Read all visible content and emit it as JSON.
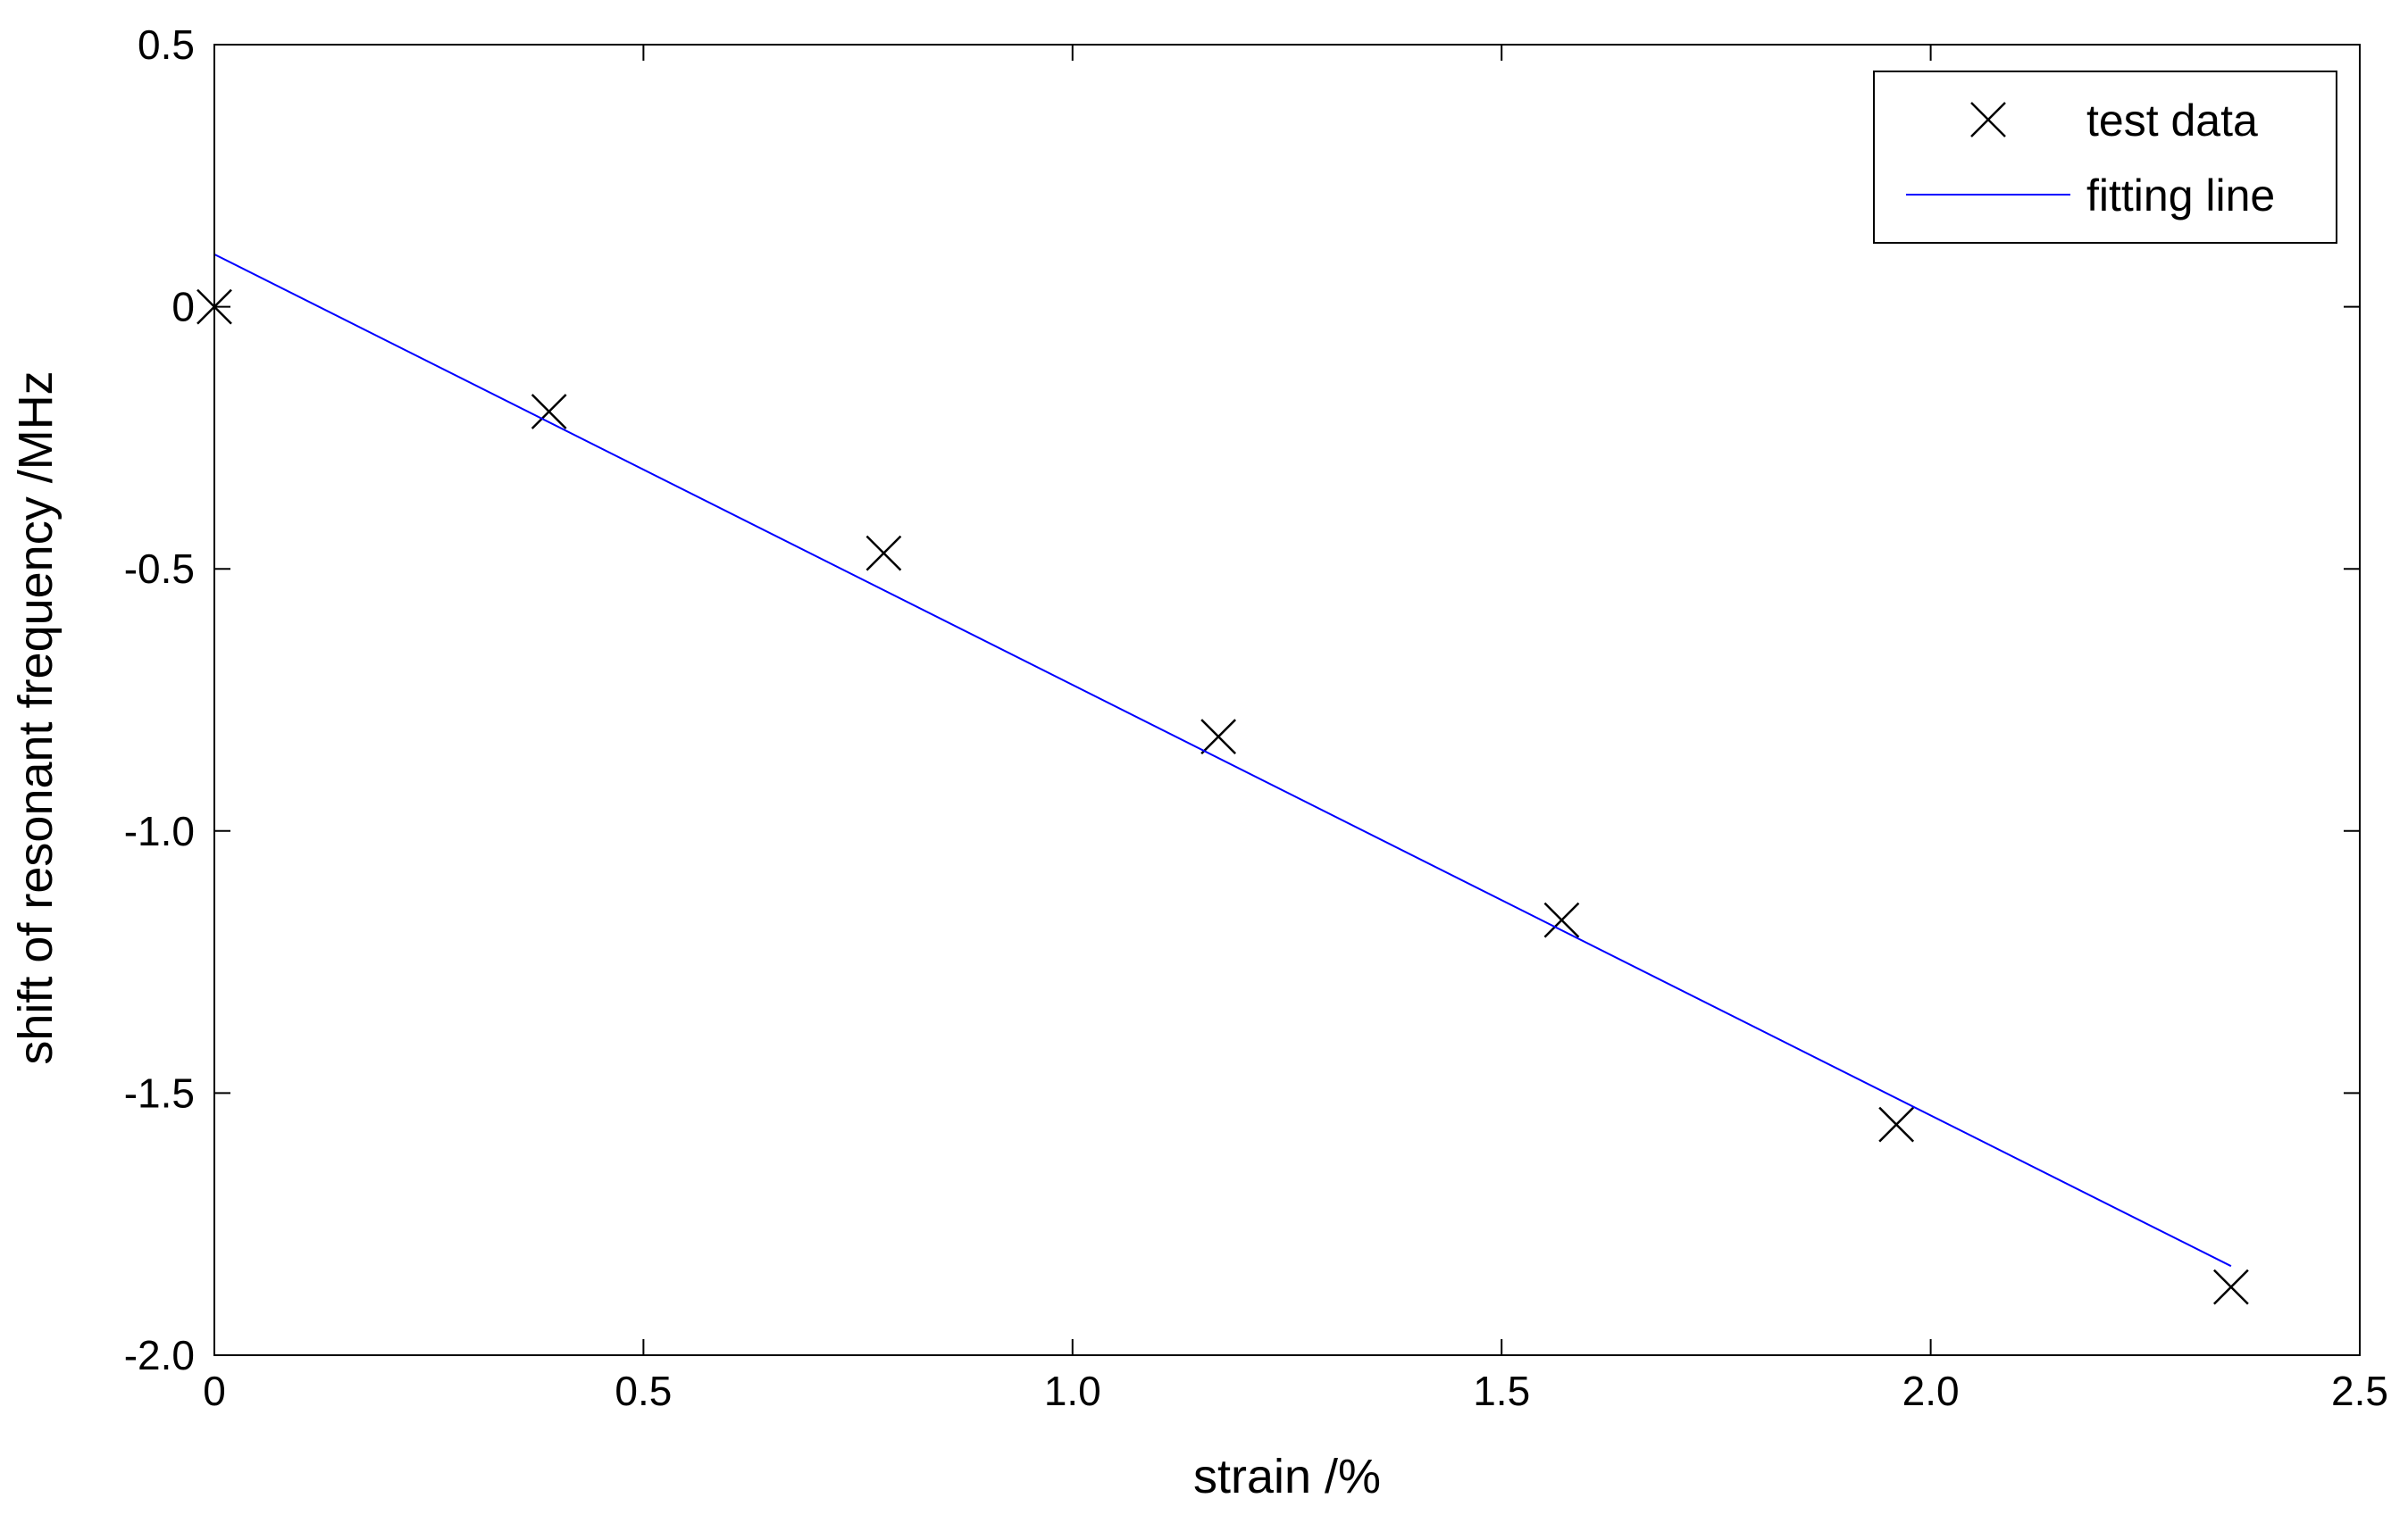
{
  "chart_data": {
    "type": "scatter",
    "title": "",
    "xlabel": "strain /%",
    "ylabel": "shift of resonant frequency /MHz",
    "xlim": [
      0,
      2.5
    ],
    "ylim": [
      -2.0,
      0.5
    ],
    "xticks": [
      "0",
      "0.5",
      "1.0",
      "1.5",
      "2.0",
      "2.5"
    ],
    "xtick_values": [
      0,
      0.5,
      1.0,
      1.5,
      2.0,
      2.5
    ],
    "yticks": [
      "0.5",
      "0",
      "-0.5",
      "-1.0",
      "-1.5",
      "-2.0"
    ],
    "ytick_values": [
      0.5,
      0,
      -0.5,
      -1.0,
      -1.5,
      -2.0
    ],
    "grid": false,
    "legend_position": "top-right",
    "series": [
      {
        "name": "test data",
        "kind": "scatter",
        "marker": "x",
        "color": "#000000",
        "x": [
          0,
          0.39,
          0.78,
          1.17,
          1.57,
          1.96,
          2.35
        ],
        "y": [
          0.0,
          -0.2,
          -0.47,
          -0.82,
          -1.17,
          -1.56,
          -1.87
        ]
      },
      {
        "name": "fitting line",
        "kind": "line",
        "color": "#0000ff",
        "x": [
          0,
          2.35
        ],
        "y": [
          0.1,
          -1.83
        ]
      }
    ]
  }
}
